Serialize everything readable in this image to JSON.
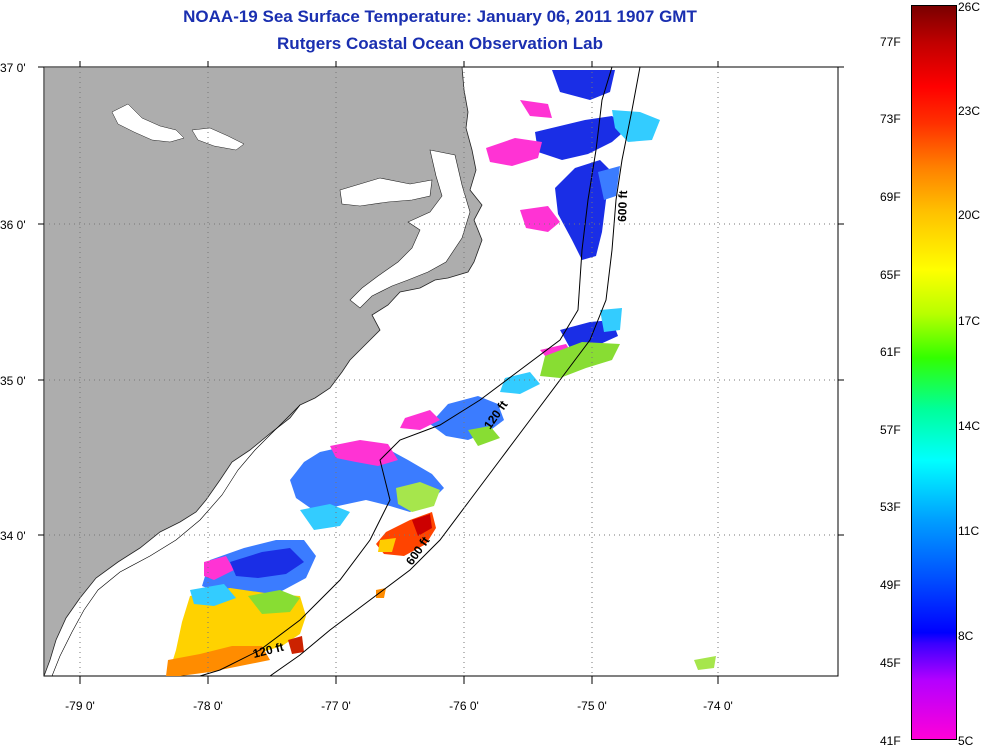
{
  "title": {
    "line1": "NOAA-19 Sea Surface Temperature:  January 06, 2011 1907 GMT",
    "line2": "Rutgers Coastal Ocean Observation Lab"
  },
  "axes": {
    "lat_labels": [
      "37 0'",
      "36 0'",
      "35 0'",
      "34 0'"
    ],
    "lon_labels": [
      "-79 0'",
      "-78 0'",
      "-77 0'",
      "-76 0'",
      "-75 0'",
      "-74 0'"
    ]
  },
  "contours": {
    "label_600_north": "600 ft",
    "label_120_mid": "120 ft",
    "label_600_south": "600 ft",
    "label_120_south": "120 ft"
  },
  "colorbar": {
    "fahrenheit": [
      "77F",
      "73F",
      "69F",
      "65F",
      "61F",
      "57F",
      "53F",
      "49F",
      "45F",
      "41F"
    ],
    "celsius": [
      "26C",
      "23C",
      "20C",
      "17C",
      "14C",
      "11C",
      "8C",
      "5C"
    ]
  },
  "colors": {
    "land": "#adadad",
    "ocean": "#ffffff",
    "title": "#1a2fb0"
  }
}
